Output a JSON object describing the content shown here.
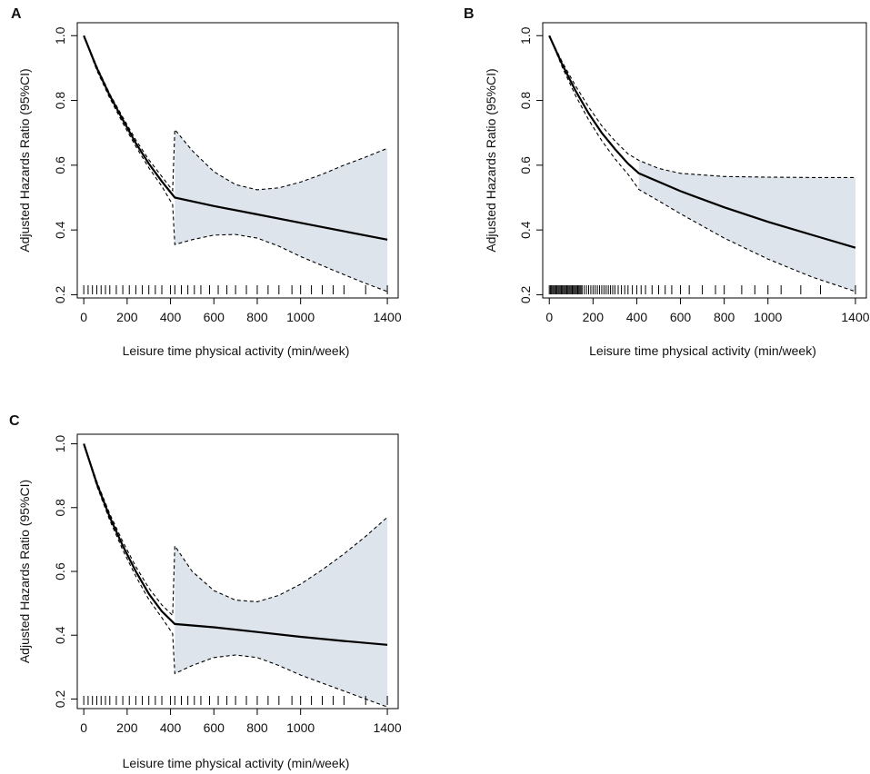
{
  "figure": {
    "panel_letters": [
      "A",
      "B",
      "C"
    ]
  },
  "style": {
    "ci_fill": "#dde4ec",
    "line_color": "#000000"
  },
  "chart_data": [
    {
      "panel": "A",
      "type": "line",
      "xlabel": "Leisure time physical activity (min/week)",
      "ylabel": "Adjusted Hazards Ratio (95%CI)",
      "xlim": [
        -30,
        1450
      ],
      "ylim": [
        0.19,
        1.04
      ],
      "xticks": [
        0,
        200,
        400,
        600,
        800,
        1000,
        1400
      ],
      "xtick_labels": [
        "0",
        "200",
        "400",
        "600",
        "800",
        "1000",
        "1400"
      ],
      "yticks": [
        0.2,
        0.4,
        0.6,
        0.8,
        1.0
      ],
      "ytick_labels": [
        "0.2",
        "0.4",
        "0.6",
        "0.8",
        "1.0"
      ],
      "series": [
        {
          "name": "HR",
          "style": "solid",
          "x": [
            0,
            60,
            120,
            180,
            240,
            300,
            360,
            420,
            600,
            800,
            1000,
            1200,
            1400
          ],
          "values": [
            1.0,
            0.9,
            0.815,
            0.74,
            0.668,
            0.605,
            0.55,
            0.5,
            0.474,
            0.448,
            0.422,
            0.396,
            0.37
          ]
        },
        {
          "name": "CI upper",
          "style": "dashed",
          "x": [
            0,
            60,
            120,
            180,
            240,
            300,
            360,
            410,
            420,
            500,
            600,
            700,
            800,
            900,
            1000,
            1100,
            1200,
            1300,
            1400
          ],
          "values": [
            1.0,
            0.905,
            0.82,
            0.748,
            0.678,
            0.617,
            0.565,
            0.522,
            0.71,
            0.645,
            0.58,
            0.54,
            0.524,
            0.53,
            0.548,
            0.572,
            0.6,
            0.625,
            0.652
          ]
        },
        {
          "name": "CI lower",
          "style": "dashed",
          "x": [
            0,
            60,
            120,
            180,
            240,
            300,
            360,
            410,
            420,
            500,
            600,
            700,
            800,
            900,
            1000,
            1100,
            1200,
            1300,
            1400
          ],
          "values": [
            1.0,
            0.893,
            0.807,
            0.73,
            0.658,
            0.592,
            0.535,
            0.478,
            0.355,
            0.37,
            0.384,
            0.386,
            0.375,
            0.35,
            0.318,
            0.29,
            0.262,
            0.235,
            0.21
          ]
        }
      ],
      "ci_band": {
        "from_x": 420,
        "upper": [
          0.71,
          0.645,
          0.58,
          0.54,
          0.524,
          0.53,
          0.548,
          0.572,
          0.6,
          0.625,
          0.652
        ],
        "lower": [
          0.355,
          0.37,
          0.384,
          0.386,
          0.375,
          0.35,
          0.318,
          0.29,
          0.262,
          0.235,
          0.21
        ],
        "x": [
          420,
          500,
          600,
          700,
          800,
          900,
          1000,
          1100,
          1200,
          1300,
          1400
        ]
      },
      "rug": [
        0,
        20,
        40,
        60,
        80,
        100,
        120,
        150,
        180,
        210,
        240,
        270,
        300,
        330,
        360,
        400,
        420,
        450,
        480,
        510,
        540,
        580,
        620,
        660,
        700,
        750,
        800,
        850,
        900,
        960,
        1000,
        1050,
        1100,
        1150,
        1200,
        1300,
        1400
      ]
    },
    {
      "panel": "B",
      "type": "line",
      "xlabel": "Leisure time physical activity (min/week)",
      "ylabel": "Adjusted Hazards Ratio (95%CI)",
      "xlim": [
        -30,
        1450
      ],
      "ylim": [
        0.19,
        1.04
      ],
      "xticks": [
        0,
        200,
        400,
        600,
        800,
        1000,
        1400
      ],
      "xtick_labels": [
        "0",
        "200",
        "400",
        "600",
        "800",
        "1000",
        "1400"
      ],
      "yticks": [
        0.2,
        0.4,
        0.6,
        0.8,
        1.0
      ],
      "ytick_labels": [
        "0.2",
        "0.4",
        "0.6",
        "0.8",
        "1.0"
      ],
      "series": [
        {
          "name": "HR",
          "style": "solid",
          "x": [
            0,
            60,
            120,
            180,
            240,
            300,
            360,
            410,
            600,
            800,
            1000,
            1200,
            1400
          ],
          "values": [
            1.0,
            0.91,
            0.83,
            0.76,
            0.7,
            0.65,
            0.605,
            0.575,
            0.52,
            0.47,
            0.425,
            0.385,
            0.345
          ]
        },
        {
          "name": "CI upper",
          "style": "dashed",
          "x": [
            0,
            60,
            120,
            180,
            240,
            300,
            360,
            410,
            500,
            600,
            800,
            1000,
            1200,
            1400
          ],
          "values": [
            1.0,
            0.918,
            0.845,
            0.78,
            0.722,
            0.675,
            0.635,
            0.615,
            0.59,
            0.575,
            0.565,
            0.563,
            0.562,
            0.562
          ]
        },
        {
          "name": "CI lower",
          "style": "dashed",
          "x": [
            0,
            60,
            120,
            180,
            240,
            300,
            360,
            410,
            500,
            600,
            800,
            1000,
            1200,
            1400
          ],
          "values": [
            1.0,
            0.902,
            0.815,
            0.74,
            0.676,
            0.62,
            0.572,
            0.525,
            0.49,
            0.45,
            0.375,
            0.31,
            0.255,
            0.21
          ]
        }
      ],
      "ci_band": {
        "from_x": 410,
        "upper": [
          0.615,
          0.59,
          0.575,
          0.565,
          0.563,
          0.562,
          0.562
        ],
        "lower": [
          0.525,
          0.49,
          0.45,
          0.375,
          0.31,
          0.255,
          0.21
        ],
        "x": [
          410,
          500,
          600,
          800,
          1000,
          1200,
          1400
        ]
      },
      "rug": [
        0,
        5,
        10,
        15,
        20,
        25,
        30,
        35,
        40,
        45,
        50,
        55,
        60,
        65,
        70,
        75,
        80,
        85,
        90,
        95,
        100,
        105,
        110,
        115,
        120,
        125,
        130,
        135,
        140,
        145,
        150,
        160,
        170,
        180,
        190,
        200,
        210,
        220,
        230,
        240,
        250,
        260,
        270,
        280,
        290,
        300,
        315,
        330,
        345,
        360,
        380,
        400,
        420,
        440,
        470,
        500,
        530,
        560,
        600,
        640,
        700,
        760,
        800,
        880,
        940,
        1000,
        1060,
        1150,
        1240,
        1400
      ]
    },
    {
      "panel": "C",
      "type": "line",
      "xlabel": "Leisure time physical activity (min/week)",
      "ylabel": "Adjusted Hazards Ratio (95%CI)",
      "xlim": [
        -30,
        1450
      ],
      "ylim": [
        0.17,
        1.03
      ],
      "xticks": [
        0,
        200,
        400,
        600,
        800,
        1000,
        1400
      ],
      "xtick_labels": [
        "0",
        "200",
        "400",
        "600",
        "800",
        "1000",
        "1400"
      ],
      "yticks": [
        0.2,
        0.4,
        0.6,
        0.8,
        1.0
      ],
      "ytick_labels": [
        "0.2",
        "0.4",
        "0.6",
        "0.8",
        "1.0"
      ],
      "series": [
        {
          "name": "HR",
          "style": "solid",
          "x": [
            0,
            60,
            120,
            180,
            240,
            300,
            360,
            420,
            600,
            800,
            1000,
            1200,
            1400
          ],
          "values": [
            1.0,
            0.875,
            0.77,
            0.68,
            0.6,
            0.53,
            0.475,
            0.435,
            0.425,
            0.41,
            0.395,
            0.382,
            0.37
          ]
        },
        {
          "name": "CI upper",
          "style": "dashed",
          "x": [
            0,
            60,
            120,
            180,
            240,
            300,
            360,
            410,
            420,
            500,
            600,
            700,
            800,
            900,
            1000,
            1100,
            1200,
            1300,
            1400
          ],
          "values": [
            1.0,
            0.882,
            0.78,
            0.693,
            0.615,
            0.548,
            0.495,
            0.462,
            0.68,
            0.6,
            0.54,
            0.51,
            0.505,
            0.525,
            0.56,
            0.605,
            0.655,
            0.71,
            0.77
          ]
        },
        {
          "name": "CI lower",
          "style": "dashed",
          "x": [
            0,
            60,
            120,
            180,
            240,
            300,
            360,
            410,
            420,
            500,
            600,
            700,
            800,
            900,
            1000,
            1100,
            1200,
            1300,
            1400
          ],
          "values": [
            1.0,
            0.868,
            0.76,
            0.667,
            0.585,
            0.512,
            0.455,
            0.405,
            0.28,
            0.305,
            0.33,
            0.338,
            0.33,
            0.305,
            0.275,
            0.25,
            0.225,
            0.2,
            0.175
          ]
        }
      ],
      "ci_band": {
        "from_x": 420,
        "upper": [
          0.68,
          0.6,
          0.54,
          0.51,
          0.505,
          0.525,
          0.56,
          0.605,
          0.655,
          0.71,
          0.77
        ],
        "lower": [
          0.28,
          0.305,
          0.33,
          0.338,
          0.33,
          0.305,
          0.275,
          0.25,
          0.225,
          0.2,
          0.175
        ],
        "x": [
          420,
          500,
          600,
          700,
          800,
          900,
          1000,
          1100,
          1200,
          1300,
          1400
        ]
      },
      "rug": [
        0,
        20,
        40,
        60,
        80,
        100,
        120,
        150,
        180,
        210,
        240,
        270,
        300,
        330,
        360,
        400,
        420,
        450,
        480,
        510,
        540,
        580,
        620,
        660,
        700,
        750,
        800,
        850,
        900,
        960,
        1000,
        1050,
        1100,
        1150,
        1200,
        1300,
        1400
      ]
    }
  ]
}
